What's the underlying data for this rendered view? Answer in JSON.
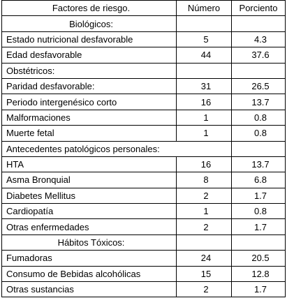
{
  "header": {
    "factors": "Factores de riesgo.",
    "number": "Número",
    "percent": "Porciento"
  },
  "groups": [
    {
      "name": "Biológicos:",
      "rows": [
        {
          "label": "Estado nutricional desfavorable",
          "number": "5",
          "percent": "4.3"
        },
        {
          "label": "Edad desfavorable",
          "number": "44",
          "percent": "37.6"
        }
      ]
    },
    {
      "name": "Obstétricos:",
      "rows": [
        {
          "label": "Paridad desfavorable:",
          "number": "31",
          "percent": "26.5"
        },
        {
          "label": "Periodo intergenésico corto",
          "number": "16",
          "percent": "13.7"
        },
        {
          "label": "Malformaciones",
          "number": "1",
          "percent": "0.8"
        },
        {
          "label": "Muerte fetal",
          "number": "1",
          "percent": "0.8"
        }
      ]
    },
    {
      "name": "Antecedentes patológicos personales:",
      "rows": [
        {
          "label": "HTA",
          "number": "16",
          "percent": "13.7"
        },
        {
          "label": "Asma Bronquial",
          "number": "8",
          "percent": "6.8"
        },
        {
          "label": "Diabetes Mellitus",
          "number": "2",
          "percent": "1.7"
        },
        {
          "label": "Cardiopatía",
          "number": "1",
          "percent": "0.8"
        },
        {
          "label": "Otras enfermedades",
          "number": "2",
          "percent": "1.7"
        }
      ]
    },
    {
      "name": "Hábitos Tóxicos:",
      "rows": [
        {
          "label": "Fumadoras",
          "number": "24",
          "percent": "20.5"
        },
        {
          "label": "Consumo de Bebidas alcohólicas",
          "number": "15",
          "percent": "12.8"
        },
        {
          "label": "Otras sustancias",
          "number": "2",
          "percent": "1.7"
        }
      ]
    }
  ]
}
